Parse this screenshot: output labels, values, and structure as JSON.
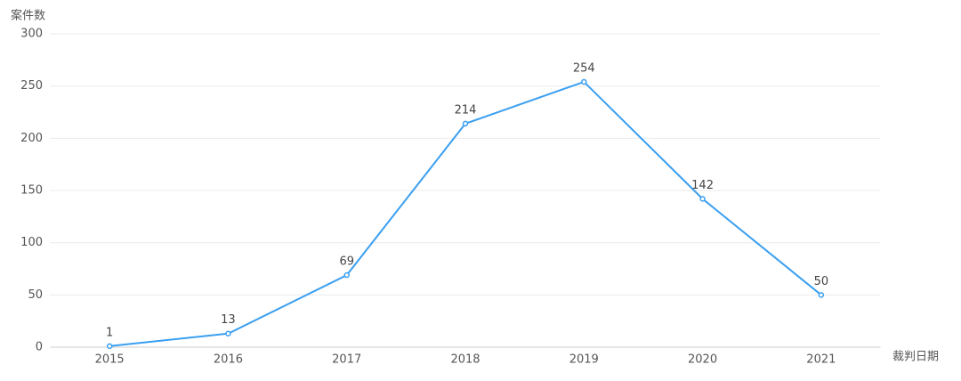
{
  "chart_data": {
    "type": "line",
    "y_label": "案件数",
    "x_label": "裁判日期",
    "categories": [
      "2015",
      "2016",
      "2017",
      "2018",
      "2019",
      "2020",
      "2021"
    ],
    "values": [
      1,
      13,
      69,
      214,
      254,
      142,
      50
    ],
    "color": "#3a9ff0",
    "ylim": [
      0,
      300
    ],
    "yticks": [
      0,
      50,
      100,
      150,
      200,
      250,
      300
    ],
    "grid": true
  }
}
